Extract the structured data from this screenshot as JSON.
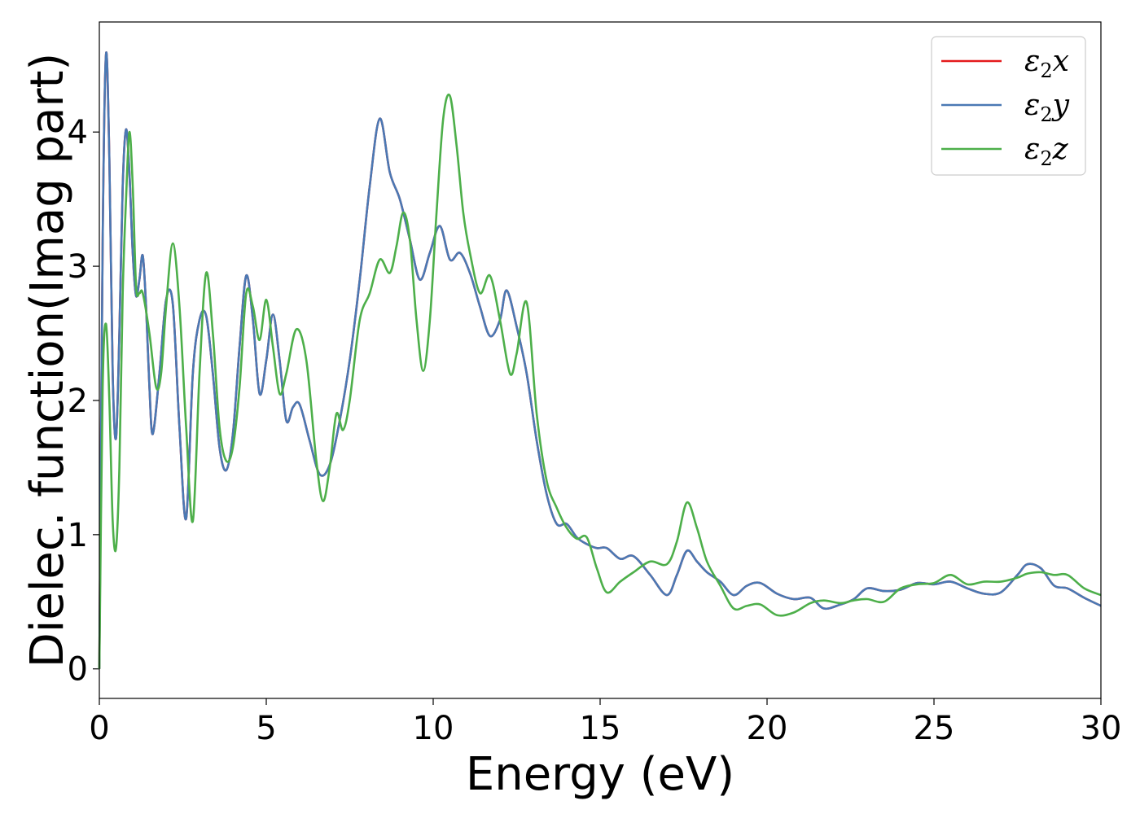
{
  "chart_data": {
    "type": "line",
    "xlabel": "Energy (eV)",
    "ylabel": "Dielec. function(Imag part)",
    "xlim": [
      0,
      30
    ],
    "ylim": [
      -0.22,
      4.82
    ],
    "xticks": [
      0,
      5,
      10,
      15,
      20,
      25,
      30
    ],
    "yticks": [
      0,
      1,
      2,
      3,
      4
    ],
    "grid": false,
    "legend_position": "top-right",
    "series": [
      {
        "name": "ε2x",
        "legend_base": "ε",
        "legend_sub": "2",
        "legend_var": "x",
        "color": "#e41a1c",
        "x": [
          0,
          0.1,
          0.2,
          0.3,
          0.4,
          0.5,
          0.6,
          0.7,
          0.8,
          0.9,
          1.0,
          1.1,
          1.2,
          1.3,
          1.4,
          1.5,
          1.6,
          1.8,
          2.0,
          2.2,
          2.4,
          2.6,
          2.8,
          3.0,
          3.2,
          3.4,
          3.6,
          3.8,
          4.0,
          4.2,
          4.4,
          4.6,
          4.8,
          5.0,
          5.2,
          5.4,
          5.6,
          5.8,
          6.0,
          6.3,
          6.6,
          6.9,
          7.2,
          7.5,
          7.8,
          8.1,
          8.4,
          8.7,
          9.0,
          9.3,
          9.6,
          9.9,
          10.2,
          10.5,
          10.8,
          11.1,
          11.4,
          11.7,
          12.0,
          12.2,
          12.5,
          12.8,
          13.1,
          13.4,
          13.7,
          14.0,
          14.3,
          14.6,
          14.9,
          15.2,
          15.6,
          16.0,
          16.5,
          17.0,
          17.3,
          17.6,
          17.9,
          18.2,
          18.6,
          19.0,
          19.4,
          19.8,
          20.3,
          20.8,
          21.3,
          21.7,
          22.2,
          22.6,
          23.0,
          23.5,
          24.0,
          24.5,
          25.0,
          25.5,
          26.0,
          26.5,
          27.0,
          27.5,
          27.8,
          28.2,
          28.6,
          29.0,
          29.5,
          30.0
        ],
        "y": [
          0.0,
          3.2,
          4.58,
          3.8,
          2.2,
          1.72,
          2.5,
          3.6,
          4.02,
          3.7,
          3.1,
          2.78,
          2.9,
          3.08,
          2.7,
          2.1,
          1.75,
          2.2,
          2.75,
          2.72,
          1.8,
          1.12,
          2.2,
          2.6,
          2.63,
          2.2,
          1.65,
          1.48,
          1.75,
          2.4,
          2.93,
          2.6,
          2.05,
          2.3,
          2.64,
          2.3,
          1.85,
          1.95,
          1.97,
          1.7,
          1.45,
          1.52,
          1.85,
          2.3,
          2.9,
          3.6,
          4.1,
          3.7,
          3.5,
          3.2,
          2.9,
          3.1,
          3.3,
          3.05,
          3.1,
          2.95,
          2.7,
          2.48,
          2.6,
          2.82,
          2.55,
          2.2,
          1.7,
          1.3,
          1.08,
          1.08,
          0.98,
          0.93,
          0.9,
          0.9,
          0.82,
          0.84,
          0.7,
          0.55,
          0.7,
          0.88,
          0.8,
          0.72,
          0.65,
          0.55,
          0.62,
          0.64,
          0.56,
          0.52,
          0.53,
          0.45,
          0.48,
          0.52,
          0.6,
          0.58,
          0.59,
          0.64,
          0.63,
          0.65,
          0.6,
          0.56,
          0.57,
          0.7,
          0.78,
          0.75,
          0.62,
          0.6,
          0.53,
          0.47
        ]
      },
      {
        "name": "ε2y",
        "legend_base": "ε",
        "legend_sub": "2",
        "legend_var": "y",
        "color": "#4a79b4",
        "x": [
          0,
          0.1,
          0.2,
          0.3,
          0.4,
          0.5,
          0.6,
          0.7,
          0.8,
          0.9,
          1.0,
          1.1,
          1.2,
          1.3,
          1.4,
          1.5,
          1.6,
          1.8,
          2.0,
          2.2,
          2.4,
          2.6,
          2.8,
          3.0,
          3.2,
          3.4,
          3.6,
          3.8,
          4.0,
          4.2,
          4.4,
          4.6,
          4.8,
          5.0,
          5.2,
          5.4,
          5.6,
          5.8,
          6.0,
          6.3,
          6.6,
          6.9,
          7.2,
          7.5,
          7.8,
          8.1,
          8.4,
          8.7,
          9.0,
          9.3,
          9.6,
          9.9,
          10.2,
          10.5,
          10.8,
          11.1,
          11.4,
          11.7,
          12.0,
          12.2,
          12.5,
          12.8,
          13.1,
          13.4,
          13.7,
          14.0,
          14.3,
          14.6,
          14.9,
          15.2,
          15.6,
          16.0,
          16.5,
          17.0,
          17.3,
          17.6,
          17.9,
          18.2,
          18.6,
          19.0,
          19.4,
          19.8,
          20.3,
          20.8,
          21.3,
          21.7,
          22.2,
          22.6,
          23.0,
          23.5,
          24.0,
          24.5,
          25.0,
          25.5,
          26.0,
          26.5,
          27.0,
          27.5,
          27.8,
          28.2,
          28.6,
          29.0,
          29.5,
          30.0
        ],
        "y": [
          0.0,
          3.2,
          4.58,
          3.8,
          2.2,
          1.72,
          2.5,
          3.6,
          4.02,
          3.7,
          3.1,
          2.78,
          2.9,
          3.08,
          2.7,
          2.1,
          1.75,
          2.2,
          2.75,
          2.72,
          1.8,
          1.12,
          2.2,
          2.6,
          2.63,
          2.2,
          1.65,
          1.48,
          1.75,
          2.4,
          2.93,
          2.6,
          2.05,
          2.3,
          2.64,
          2.3,
          1.85,
          1.95,
          1.97,
          1.7,
          1.45,
          1.52,
          1.85,
          2.3,
          2.9,
          3.6,
          4.1,
          3.7,
          3.5,
          3.2,
          2.9,
          3.1,
          3.3,
          3.05,
          3.1,
          2.95,
          2.7,
          2.48,
          2.6,
          2.82,
          2.55,
          2.2,
          1.7,
          1.3,
          1.08,
          1.08,
          0.98,
          0.93,
          0.9,
          0.9,
          0.82,
          0.84,
          0.7,
          0.55,
          0.7,
          0.88,
          0.8,
          0.72,
          0.65,
          0.55,
          0.62,
          0.64,
          0.56,
          0.52,
          0.53,
          0.45,
          0.48,
          0.52,
          0.6,
          0.58,
          0.59,
          0.64,
          0.63,
          0.65,
          0.6,
          0.56,
          0.57,
          0.7,
          0.78,
          0.75,
          0.62,
          0.6,
          0.53,
          0.47
        ]
      },
      {
        "name": "ε2z",
        "legend_base": "ε",
        "legend_sub": "2",
        "legend_var": "z",
        "color": "#4daf4a",
        "x": [
          0,
          0.1,
          0.2,
          0.3,
          0.4,
          0.5,
          0.6,
          0.7,
          0.8,
          0.9,
          1.0,
          1.1,
          1.2,
          1.3,
          1.5,
          1.7,
          1.85,
          2.0,
          2.2,
          2.4,
          2.6,
          2.8,
          3.0,
          3.2,
          3.4,
          3.6,
          3.8,
          4.0,
          4.2,
          4.4,
          4.6,
          4.8,
          5.0,
          5.2,
          5.4,
          5.6,
          5.9,
          6.2,
          6.5,
          6.7,
          6.9,
          7.1,
          7.3,
          7.5,
          7.8,
          8.1,
          8.4,
          8.7,
          8.9,
          9.1,
          9.3,
          9.5,
          9.7,
          9.9,
          10.1,
          10.3,
          10.5,
          10.7,
          10.9,
          11.1,
          11.4,
          11.7,
          12.0,
          12.3,
          12.5,
          12.8,
          13.1,
          13.4,
          13.7,
          14.0,
          14.3,
          14.6,
          14.9,
          15.2,
          15.6,
          16.0,
          16.5,
          17.0,
          17.3,
          17.6,
          17.9,
          18.2,
          18.6,
          19.0,
          19.4,
          19.8,
          20.3,
          20.8,
          21.3,
          21.7,
          22.2,
          22.6,
          23.0,
          23.5,
          24.0,
          24.5,
          25.0,
          25.5,
          26.0,
          26.5,
          27.0,
          27.5,
          27.8,
          28.2,
          28.6,
          29.0,
          29.5,
          30.0
        ],
        "y": [
          0.0,
          2.1,
          2.57,
          2.0,
          1.1,
          0.9,
          1.5,
          2.8,
          3.5,
          4.0,
          3.6,
          2.85,
          2.8,
          2.8,
          2.5,
          2.1,
          2.2,
          2.7,
          3.17,
          2.7,
          1.8,
          1.1,
          2.2,
          2.95,
          2.5,
          1.8,
          1.55,
          1.65,
          2.1,
          2.8,
          2.7,
          2.45,
          2.75,
          2.4,
          2.05,
          2.2,
          2.53,
          2.3,
          1.55,
          1.25,
          1.5,
          1.9,
          1.78,
          2.0,
          2.6,
          2.8,
          3.05,
          2.95,
          3.15,
          3.4,
          3.2,
          2.6,
          2.22,
          2.6,
          3.4,
          4.1,
          4.27,
          3.9,
          3.4,
          3.1,
          2.8,
          2.93,
          2.6,
          2.2,
          2.35,
          2.73,
          1.9,
          1.4,
          1.2,
          1.05,
          0.97,
          0.98,
          0.75,
          0.57,
          0.65,
          0.72,
          0.8,
          0.78,
          0.95,
          1.24,
          1.05,
          0.8,
          0.62,
          0.45,
          0.47,
          0.48,
          0.4,
          0.42,
          0.49,
          0.51,
          0.49,
          0.51,
          0.52,
          0.5,
          0.6,
          0.63,
          0.64,
          0.7,
          0.63,
          0.65,
          0.65,
          0.68,
          0.71,
          0.72,
          0.7,
          0.7,
          0.6,
          0.55
        ]
      }
    ]
  }
}
